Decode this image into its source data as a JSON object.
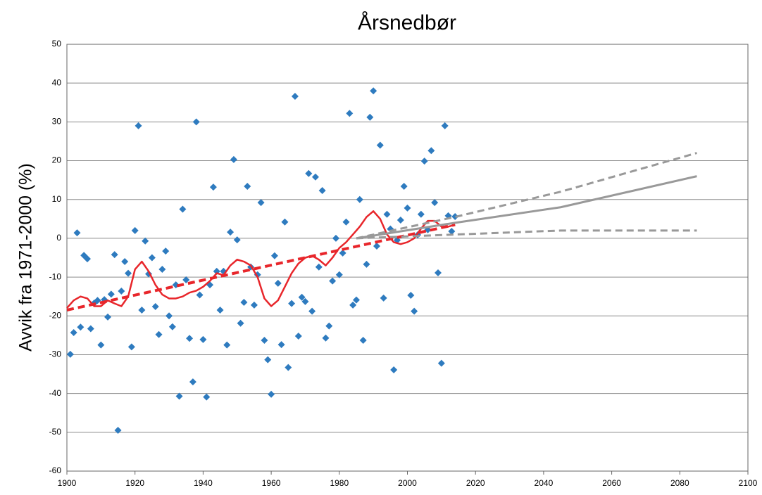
{
  "chart_data": {
    "type": "scatter",
    "title": "Årsnedbør",
    "y_label": "Avvik fra 1971-2000 (%)",
    "xlim": [
      1900,
      2100
    ],
    "xticks": [
      1900,
      1920,
      1940,
      1960,
      1980,
      2000,
      2020,
      2040,
      2060,
      2080,
      2100
    ],
    "ylim": [
      -60,
      50
    ],
    "yticks": [
      -60,
      -50,
      -40,
      -30,
      -20,
      -10,
      0,
      10,
      20,
      30,
      40,
      50
    ],
    "grid": true,
    "series": [
      {
        "mark": "marker",
        "color": "#2e7bbf",
        "x": [
          1901,
          1902,
          1903,
          1904,
          1905,
          1906,
          1907,
          1908,
          1909,
          1910,
          1911,
          1912,
          1913,
          1914,
          1915,
          1916,
          1917,
          1918,
          1919,
          1920,
          1921,
          1922,
          1923,
          1924,
          1925,
          1926,
          1927,
          1928,
          1929,
          1930,
          1931,
          1932,
          1933,
          1934,
          1935,
          1936,
          1937,
          1938,
          1939,
          1940,
          1941,
          1942,
          1943,
          1944,
          1945,
          1946,
          1947,
          1948,
          1949,
          1950,
          1951,
          1952,
          1953,
          1954,
          1955,
          1956,
          1957,
          1958,
          1959,
          1960,
          1961,
          1962,
          1963,
          1964,
          1965,
          1966,
          1967,
          1968,
          1969,
          1970,
          1971,
          1972,
          1973,
          1974,
          1975,
          1976,
          1977,
          1978,
          1979,
          1980,
          1981,
          1982,
          1983,
          1984,
          1985,
          1986,
          1987,
          1988,
          1989,
          1990,
          1991,
          1992,
          1993,
          1994,
          1995,
          1996,
          1997,
          1998,
          1999,
          2000,
          2001,
          2002,
          2003,
          2004,
          2005,
          2006,
          2007,
          2008,
          2009,
          2010,
          2011,
          2012,
          2013,
          2014
        ],
        "values": [
          -29.9,
          -24.3,
          1.4,
          -22.9,
          -4.4,
          -5.3,
          -23.3,
          -16.7,
          -16,
          -27.5,
          -15.8,
          -20.3,
          -14.4,
          -4.2,
          -49.5,
          -13.6,
          -6,
          -9,
          -28,
          2,
          29,
          -18.5,
          -0.7,
          -9.2,
          -5,
          -17.6,
          -24.8,
          -8,
          -3.3,
          -20,
          -22.8,
          -12,
          -40.7,
          7.5,
          -10.7,
          -25.8,
          -37,
          30,
          -14.6,
          -26.1,
          -40.9,
          -12,
          13.2,
          -8.5,
          -18.5,
          -8.5,
          -27.5,
          1.6,
          20.3,
          -0.4,
          -21.9,
          -16.5,
          13.4,
          -7.4,
          -17.2,
          -9.4,
          9.2,
          -26.3,
          -31.3,
          -40.2,
          -4.5,
          -11.6,
          -27.4,
          4.2,
          -33.3,
          -16.8,
          36.6,
          -25.2,
          -15.2,
          -16.3,
          16.7,
          -18.8,
          15.8,
          -7.4,
          12.3,
          -25.7,
          -22.6,
          -11,
          0,
          -9.4,
          -3.8,
          4.2,
          32.2,
          -17.2,
          -15.9,
          10,
          -26.3,
          -6.7,
          31.2,
          38,
          -2,
          24,
          -15.4,
          6.2,
          2.4,
          -33.9,
          -0.5,
          4.7,
          13.4,
          7.8,
          -14.7,
          -18.8,
          0.9,
          6.2,
          19.9,
          2.2,
          22.6,
          9.2,
          -8.9,
          -32.2,
          29,
          5.8,
          1.8,
          5.6
        ]
      },
      {
        "mark": "line",
        "color": "#e8262b",
        "x": [
          1900,
          1902,
          1904,
          1906,
          1908,
          1910,
          1912,
          1914,
          1916,
          1918,
          1920,
          1922,
          1924,
          1926,
          1928,
          1930,
          1932,
          1934,
          1936,
          1938,
          1940,
          1942,
          1944,
          1946,
          1948,
          1950,
          1952,
          1954,
          1956,
          1958,
          1960,
          1962,
          1964,
          1966,
          1968,
          1970,
          1972,
          1974,
          1976,
          1978,
          1980,
          1982,
          1984,
          1986,
          1988,
          1990,
          1992,
          1994,
          1996,
          1998,
          2000,
          2002,
          2004,
          2006,
          2008,
          2010,
          2012,
          2014
        ],
        "values": [
          -18,
          -16,
          -15,
          -15.5,
          -17.5,
          -17.5,
          -16,
          -16.8,
          -17.5,
          -15,
          -8,
          -6,
          -8.5,
          -12,
          -14.5,
          -15.5,
          -15.5,
          -15,
          -14,
          -13.5,
          -12.5,
          -11,
          -9,
          -9.5,
          -7,
          -5.5,
          -6,
          -7,
          -10,
          -15.5,
          -17.5,
          -16,
          -12.5,
          -9,
          -6.5,
          -5,
          -4.5,
          -5.5,
          -7,
          -5,
          -2.5,
          -1,
          1,
          3,
          5.5,
          7,
          5,
          1,
          -1,
          -1.5,
          -1,
          0,
          2.5,
          4.5,
          4.5,
          3,
          3,
          3.5
        ]
      },
      {
        "mark": "dashed",
        "color": "#e8262b",
        "x": [
          1900,
          2014
        ],
        "values": [
          -18.5,
          3.5
        ]
      },
      {
        "mark": "line",
        "color": "#999999",
        "x": [
          1985,
          2014,
          2045,
          2085
        ],
        "values": [
          0,
          4,
          8,
          16
        ]
      },
      {
        "mark": "dashed",
        "color": "#999999",
        "x": [
          1985,
          2014,
          2045,
          2085
        ],
        "values": [
          0,
          5.5,
          12,
          22
        ]
      },
      {
        "mark": "dashed",
        "color": "#999999",
        "x": [
          1985,
          2045,
          2085
        ],
        "values": [
          0,
          2,
          2
        ]
      }
    ]
  }
}
